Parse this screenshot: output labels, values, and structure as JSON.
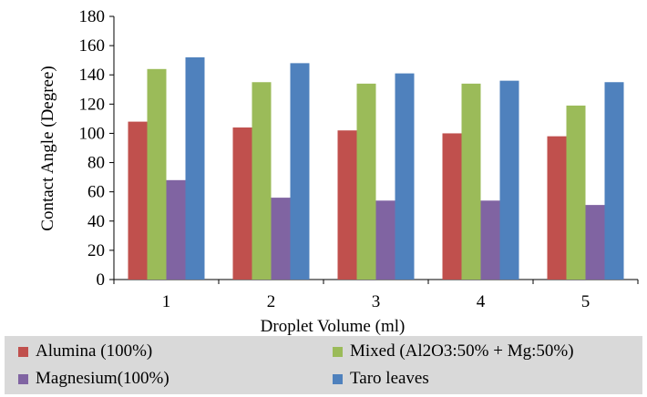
{
  "chart_data": {
    "type": "bar",
    "categories": [
      "1",
      "2",
      "3",
      "4",
      "5"
    ],
    "series": [
      {
        "name": "Alumina (100%)",
        "values": [
          108,
          104,
          102,
          100,
          98
        ],
        "color": "#c0504d"
      },
      {
        "name": "Mixed (Al2O3:50% + Mg:50%)",
        "values": [
          144,
          135,
          134,
          134,
          119
        ],
        "color": "#9bbb59"
      },
      {
        "name": "Magnesium(100%)",
        "values": [
          68,
          56,
          54,
          54,
          51
        ],
        "color": "#8064a2"
      },
      {
        "name": "Taro leaves",
        "values": [
          152,
          148,
          141,
          136,
          135
        ],
        "color": "#4f81bd"
      }
    ],
    "xlabel": "Droplet Volume (ml)",
    "ylabel": "Contact Angle (Degree)",
    "ylim": [
      0,
      180
    ],
    "yticks": [
      "0",
      "20",
      "40",
      "60",
      "80",
      "100",
      "120",
      "140",
      "160",
      "180"
    ],
    "grid": false,
    "legend_position": "bottom"
  }
}
